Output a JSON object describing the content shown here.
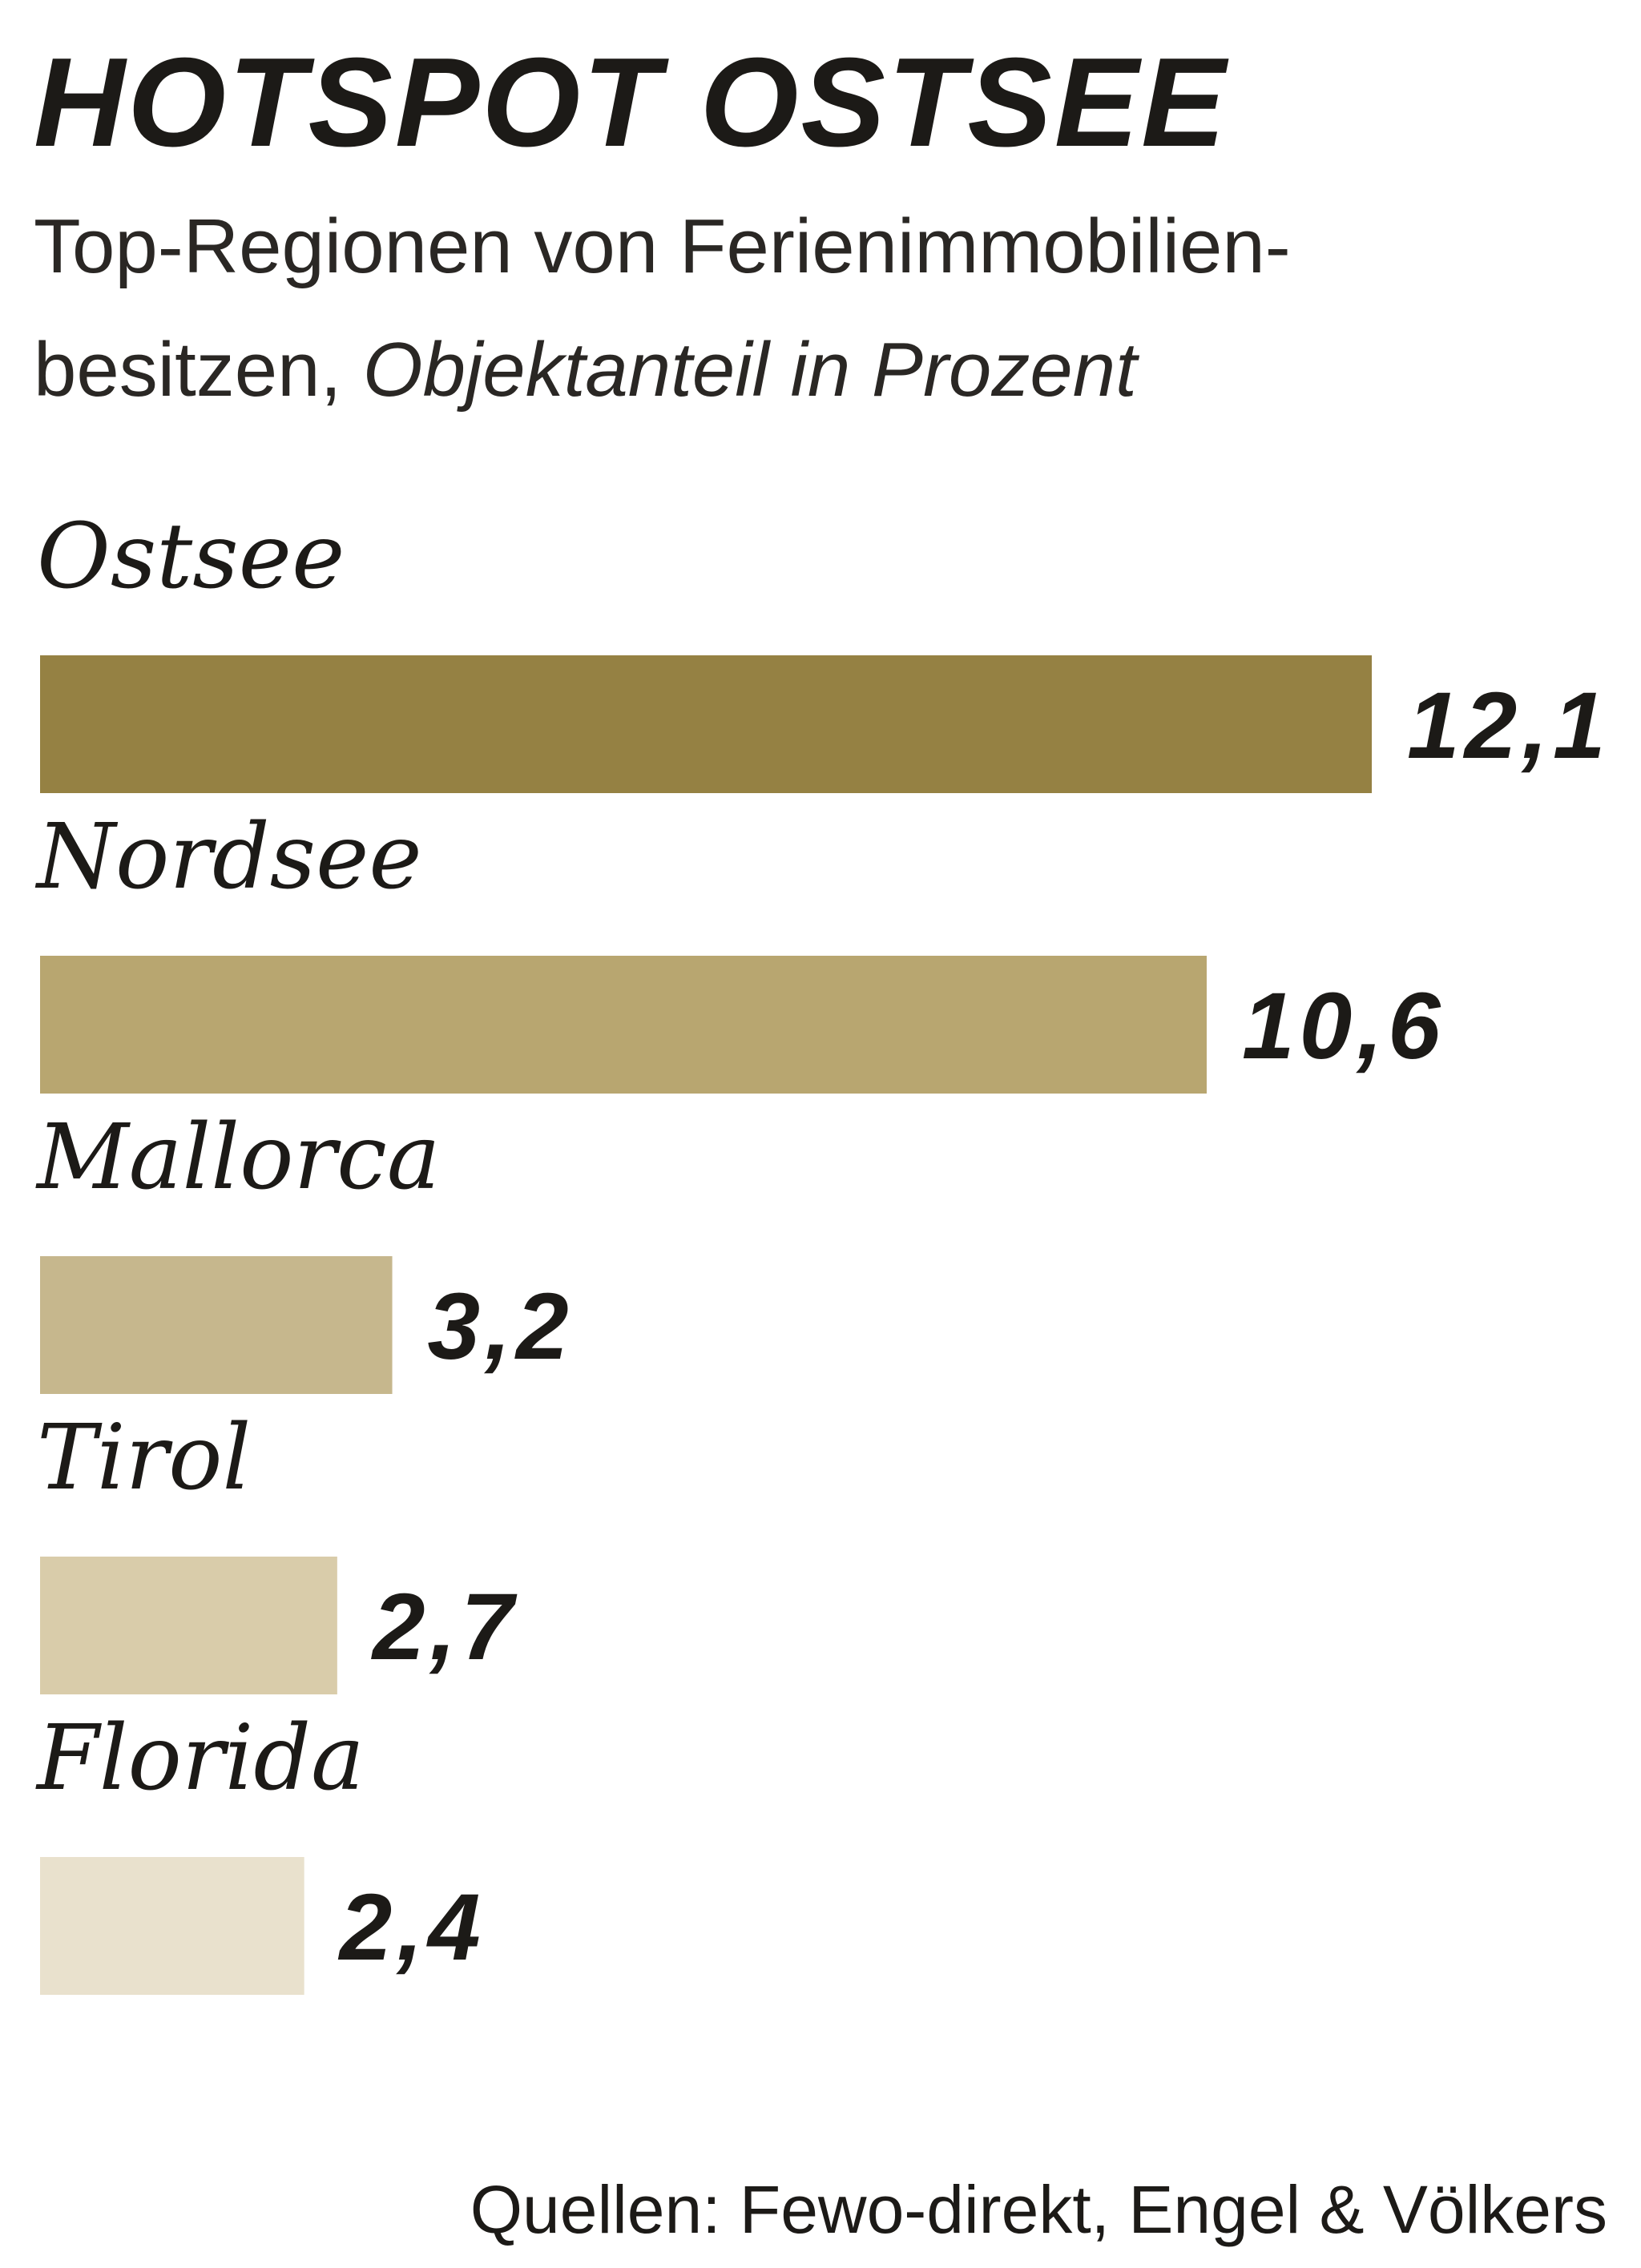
{
  "chart_data": {
    "type": "bar",
    "orientation": "horizontal",
    "title": "HOTSPOT OSTSEE",
    "subtitle_line1": "Top-Regionen von Ferienimmobilien-",
    "subtitle_line2_regular": "besitzen, ",
    "subtitle_line2_italic": "Objektanteil in Prozent",
    "categories": [
      "Ostsee",
      "Nordsee",
      "Mallorca",
      "Tirol",
      "Florida"
    ],
    "values": [
      12.1,
      10.6,
      3.2,
      2.7,
      2.4
    ],
    "value_labels": [
      "12,1",
      "10,6",
      "3,2",
      "2,7",
      "2,4"
    ],
    "bar_colors": [
      "#958143",
      "#b8a670",
      "#c6b78d",
      "#d9ccaa",
      "#e9e1cd"
    ],
    "source": "Quellen: Fewo-direkt, Engel & Völkers",
    "grid": false,
    "legend": "none"
  }
}
